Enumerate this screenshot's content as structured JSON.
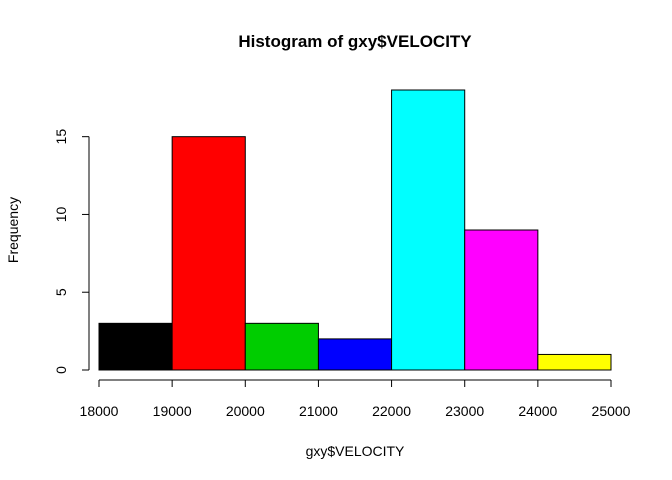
{
  "chart_data": {
    "type": "bar",
    "title": "Histogram of gxy$VELOCITY",
    "xlabel": "gxy$VELOCITY",
    "ylabel": "Frequency",
    "bins": [
      {
        "from": 18000,
        "to": 19000,
        "count": 3,
        "color": "#000000"
      },
      {
        "from": 19000,
        "to": 20000,
        "count": 15,
        "color": "#FF0000"
      },
      {
        "from": 20000,
        "to": 21000,
        "count": 3,
        "color": "#00CD00"
      },
      {
        "from": 21000,
        "to": 22000,
        "count": 2,
        "color": "#0000FF"
      },
      {
        "from": 22000,
        "to": 23000,
        "count": 18,
        "color": "#00FFFF"
      },
      {
        "from": 23000,
        "to": 24000,
        "count": 9,
        "color": "#FF00FF"
      },
      {
        "from": 24000,
        "to": 25000,
        "count": 1,
        "color": "#FFFF00"
      }
    ],
    "x_ticks": [
      "18000",
      "19000",
      "20000",
      "21000",
      "22000",
      "23000",
      "24000",
      "25000"
    ],
    "y_ticks": [
      "0",
      "5",
      "10",
      "15"
    ],
    "xlim": [
      18000,
      25000
    ],
    "ylim": [
      0,
      18
    ],
    "grid": false,
    "legend": "none"
  }
}
